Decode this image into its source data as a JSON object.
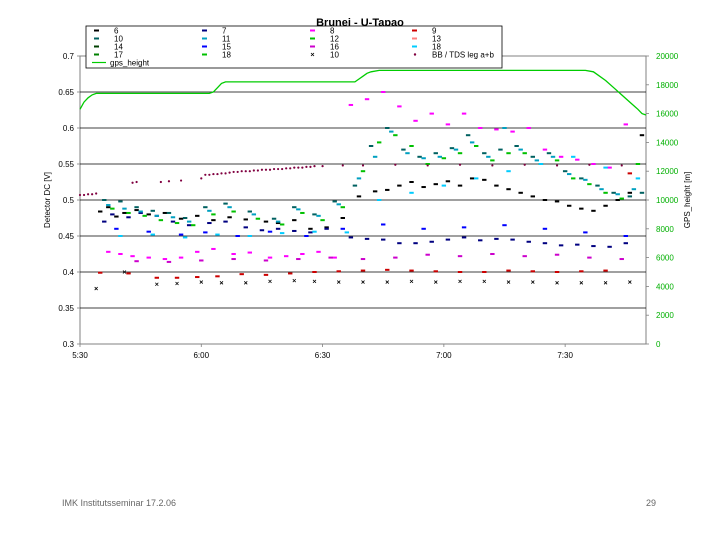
{
  "chart_data": {
    "type": "scatter",
    "title": "Brunei - U-Tapao",
    "ylabel": "Detector DC [V]",
    "y2label": "GPS_height [m]",
    "x_ticks": [
      "5:30",
      "6:00",
      "6:30",
      "7:00",
      "7:30"
    ],
    "x_range_minutes": [
      330,
      470
    ],
    "ylim": [
      0.3,
      0.7
    ],
    "y_ticks": [
      "0.3",
      "0.35",
      "0.4",
      "0.45",
      "0.5",
      "0.55",
      "0.6",
      "0.65",
      "0.7"
    ],
    "y2lim": [
      0,
      20000
    ],
    "y2_ticks": [
      "0",
      "2000",
      "4000",
      "6000",
      "8000",
      "10000",
      "12000",
      "14000",
      "16000",
      "18000",
      "20000"
    ],
    "grid": "horizontal",
    "legend_position": "top",
    "legend": [
      {
        "label": "6",
        "color": "#000000",
        "marker": "dash"
      },
      {
        "label": "7",
        "color": "#000080",
        "marker": "dash"
      },
      {
        "label": "8",
        "color": "#ff00ff",
        "marker": "dash"
      },
      {
        "label": "9",
        "color": "#cc0000",
        "marker": "dash"
      },
      {
        "label": "10",
        "color": "#006060",
        "marker": "dash"
      },
      {
        "label": "11",
        "color": "#00a0c0",
        "marker": "dash"
      },
      {
        "label": "12",
        "color": "#00c000",
        "marker": "dash"
      },
      {
        "label": "13",
        "color": "#ff8080",
        "marker": "dash"
      },
      {
        "label": "14",
        "color": "#004000",
        "marker": "dash"
      },
      {
        "label": "15",
        "color": "#0000ff",
        "marker": "dash"
      },
      {
        "label": "16",
        "color": "#cc00cc",
        "marker": "dash"
      },
      {
        "label": "18",
        "color": "#00ccff",
        "marker": "dash"
      },
      {
        "label": "17",
        "color": "#008000",
        "marker": "dash"
      },
      {
        "label": "18",
        "color": "#00c000",
        "marker": "dash"
      },
      {
        "label": "10",
        "color": "#000000",
        "marker": "x"
      },
      {
        "label": "BB / TDS leg a+b",
        "color": "#800040",
        "marker": "dot"
      },
      {
        "label": "gps_height",
        "color": "#00cc00",
        "marker": "line"
      }
    ],
    "gps_height": {
      "name": "gps_height",
      "color": "#00cc00",
      "x": [
        330,
        331,
        332,
        333,
        334,
        336,
        340,
        345,
        350,
        355,
        360,
        362,
        363,
        364,
        365,
        366,
        367,
        368,
        370,
        375,
        380,
        385,
        390,
        395,
        398,
        399,
        400,
        401,
        402,
        404,
        406,
        410,
        415,
        420,
        425,
        430,
        435,
        440,
        445,
        450,
        455,
        457,
        458,
        460,
        462,
        464,
        466,
        468,
        469,
        470
      ],
      "values": [
        16300,
        16800,
        17100,
        17300,
        17400,
        17400,
        17400,
        17400,
        17400,
        17400,
        17400,
        17400,
        17500,
        17800,
        18100,
        18200,
        18200,
        18200,
        18200,
        18200,
        18200,
        18200,
        18200,
        18200,
        18200,
        18400,
        18600,
        18800,
        18900,
        19000,
        19000,
        19000,
        19000,
        19000,
        19000,
        19000,
        19000,
        19000,
        19000,
        19000,
        19000,
        18900,
        18700,
        18300,
        17800,
        17300,
        16800,
        16300,
        16000,
        15900
      ]
    },
    "series": [
      {
        "name": "6",
        "color": "#000000",
        "x": [
          335,
          337,
          339,
          341,
          344,
          347,
          351,
          355,
          359,
          363,
          367,
          371,
          376,
          379,
          383,
          387,
          391,
          395,
          399,
          403,
          406,
          409,
          412,
          415,
          418,
          421,
          424,
          427,
          430,
          433,
          436,
          439,
          442,
          445,
          448,
          451,
          454,
          457,
          460,
          463,
          466,
          469
        ],
        "values": [
          0.484,
          0.49,
          0.477,
          0.482,
          0.486,
          0.48,
          0.482,
          0.474,
          0.478,
          0.472,
          0.476,
          0.473,
          0.47,
          0.468,
          0.472,
          0.46,
          0.462,
          0.475,
          0.505,
          0.512,
          0.514,
          0.52,
          0.525,
          0.518,
          0.522,
          0.526,
          0.52,
          0.53,
          0.528,
          0.52,
          0.515,
          0.51,
          0.505,
          0.5,
          0.498,
          0.492,
          0.488,
          0.485,
          0.492,
          0.5,
          0.51,
          0.59
        ]
      },
      {
        "name": "7",
        "color": "#000080",
        "x": [
          336,
          338,
          342,
          345,
          349,
          353,
          357,
          362,
          366,
          371,
          375,
          379,
          383,
          387,
          391,
          397,
          401,
          405,
          409,
          413,
          417,
          421,
          425,
          429,
          433,
          437,
          441,
          445,
          449,
          453,
          457,
          461,
          465
        ],
        "values": [
          0.47,
          0.48,
          0.476,
          0.482,
          0.478,
          0.47,
          0.465,
          0.468,
          0.47,
          0.462,
          0.458,
          0.46,
          0.457,
          0.455,
          0.46,
          0.448,
          0.446,
          0.445,
          0.44,
          0.44,
          0.442,
          0.445,
          0.448,
          0.444,
          0.446,
          0.445,
          0.442,
          0.44,
          0.437,
          0.438,
          0.436,
          0.435,
          0.44
        ]
      },
      {
        "name": "8",
        "color": "#ff00ff",
        "x": [
          337,
          340,
          343,
          347,
          351,
          355,
          359,
          363,
          368,
          372,
          377,
          381,
          385,
          389,
          393,
          397,
          401,
          405,
          409,
          413,
          417,
          421,
          425,
          429,
          433,
          437,
          441,
          445,
          449,
          453,
          457,
          461,
          465
        ],
        "values": [
          0.428,
          0.425,
          0.422,
          0.42,
          0.418,
          0.42,
          0.428,
          0.432,
          0.425,
          0.427,
          0.42,
          0.422,
          0.425,
          0.428,
          0.42,
          0.632,
          0.64,
          0.65,
          0.63,
          0.61,
          0.62,
          0.605,
          0.62,
          0.6,
          0.598,
          0.595,
          0.6,
          0.57,
          0.56,
          0.556,
          0.55,
          0.545,
          0.605
        ]
      },
      {
        "name": "9",
        "color": "#cc0000",
        "x": [
          335,
          342,
          349,
          354,
          359,
          364,
          370,
          376,
          382,
          388,
          394,
          400,
          406,
          412,
          418,
          424,
          430,
          436,
          442,
          448,
          454,
          460,
          466
        ],
        "values": [
          0.399,
          0.398,
          0.392,
          0.392,
          0.393,
          0.394,
          0.397,
          0.396,
          0.398,
          0.4,
          0.401,
          0.402,
          0.403,
          0.402,
          0.401,
          0.4,
          0.4,
          0.402,
          0.401,
          0.4,
          0.401,
          0.402,
          0.537
        ]
      },
      {
        "name": "10",
        "color": "#006060",
        "x": [
          336,
          340,
          344,
          348,
          352,
          356,
          361,
          366,
          372,
          378,
          383,
          388,
          393,
          398,
          402,
          406,
          410,
          414,
          418,
          422,
          426,
          430,
          434,
          438,
          442,
          446,
          450,
          454,
          458,
          462,
          466,
          469
        ],
        "values": [
          0.5,
          0.498,
          0.49,
          0.485,
          0.482,
          0.475,
          0.49,
          0.495,
          0.484,
          0.474,
          0.49,
          0.48,
          0.498,
          0.52,
          0.575,
          0.6,
          0.57,
          0.56,
          0.565,
          0.572,
          0.59,
          0.565,
          0.57,
          0.575,
          0.56,
          0.565,
          0.54,
          0.53,
          0.52,
          0.51,
          0.505,
          0.51
        ]
      },
      {
        "name": "11",
        "color": "#00a0c0",
        "x": [
          337,
          341,
          345,
          349,
          353,
          357,
          362,
          367,
          373,
          379,
          384,
          389,
          394,
          399,
          403,
          407,
          411,
          415,
          419,
          423,
          427,
          431,
          435,
          439,
          443,
          447,
          451,
          455,
          459,
          463,
          467
        ],
        "values": [
          0.493,
          0.488,
          0.484,
          0.478,
          0.476,
          0.47,
          0.485,
          0.49,
          0.48,
          0.47,
          0.487,
          0.478,
          0.494,
          0.53,
          0.56,
          0.595,
          0.565,
          0.558,
          0.56,
          0.57,
          0.58,
          0.56,
          0.6,
          0.57,
          0.555,
          0.56,
          0.536,
          0.528,
          0.515,
          0.508,
          0.515
        ]
      },
      {
        "name": "12",
        "color": "#00c000",
        "x": [
          338,
          342,
          346,
          350,
          354,
          358,
          363,
          368,
          374,
          380,
          385,
          390,
          395,
          400,
          404,
          408,
          412,
          416,
          420,
          424,
          428,
          432,
          436,
          440,
          444,
          448,
          452,
          456,
          460,
          464,
          468
        ],
        "values": [
          0.488,
          0.482,
          0.478,
          0.472,
          0.468,
          0.465,
          0.48,
          0.484,
          0.474,
          0.466,
          0.482,
          0.472,
          0.49,
          0.54,
          0.58,
          0.59,
          0.575,
          0.55,
          0.558,
          0.565,
          0.575,
          0.555,
          0.565,
          0.565,
          0.55,
          0.555,
          0.53,
          0.522,
          0.51,
          0.502,
          0.55
        ]
      },
      {
        "name": "15",
        "color": "#0000ff",
        "x": [
          339,
          347,
          355,
          361,
          369,
          377,
          386,
          395,
          405,
          415,
          425,
          435,
          445,
          455,
          465
        ],
        "values": [
          0.46,
          0.456,
          0.452,
          0.455,
          0.45,
          0.456,
          0.45,
          0.46,
          0.466,
          0.46,
          0.462,
          0.465,
          0.46,
          0.455,
          0.45
        ]
      },
      {
        "name": "16",
        "color": "#cc00cc",
        "x": [
          344,
          352,
          360,
          368,
          376,
          384,
          392,
          400,
          408,
          416,
          424,
          432,
          440,
          448,
          456,
          464
        ],
        "values": [
          0.415,
          0.414,
          0.416,
          0.418,
          0.416,
          0.418,
          0.42,
          0.418,
          0.42,
          0.424,
          0.422,
          0.425,
          0.422,
          0.424,
          0.42,
          0.418
        ]
      },
      {
        "name": "18",
        "color": "#00ccff",
        "x": [
          340,
          348,
          356,
          364,
          372,
          380,
          388,
          396,
          404,
          412,
          420,
          428,
          436,
          444,
          452,
          460,
          468
        ],
        "values": [
          0.45,
          0.452,
          0.448,
          0.452,
          0.45,
          0.454,
          0.456,
          0.455,
          0.5,
          0.51,
          0.52,
          0.53,
          0.54,
          0.55,
          0.56,
          0.545,
          0.53
        ]
      },
      {
        "name": "10",
        "color": "#000000",
        "marker": "x",
        "x": [
          334,
          341,
          349,
          354,
          360,
          365,
          371,
          377,
          383,
          388,
          394,
          400,
          406,
          412,
          418,
          424,
          430,
          436,
          442,
          448,
          454,
          460,
          466
        ],
        "values": [
          0.377,
          0.4,
          0.383,
          0.384,
          0.386,
          0.385,
          0.385,
          0.387,
          0.388,
          0.387,
          0.386,
          0.386,
          0.386,
          0.387,
          0.386,
          0.387,
          0.387,
          0.386,
          0.386,
          0.385,
          0.385,
          0.385,
          0.386
        ]
      },
      {
        "name": "BB / TDS leg a+b",
        "color": "#800040",
        "marker": "dot",
        "x": [
          330,
          331,
          332,
          333,
          334,
          343,
          344,
          350,
          352,
          355,
          360,
          361,
          362,
          363,
          364,
          365,
          366,
          367,
          368,
          369,
          370,
          371,
          372,
          373,
          374,
          375,
          376,
          377,
          378,
          379,
          380,
          381,
          382,
          383,
          384,
          385,
          386,
          387,
          388,
          390,
          395,
          400,
          408,
          416,
          424,
          432,
          440,
          448,
          456,
          464
        ],
        "values": [
          0.507,
          0.507,
          0.508,
          0.508,
          0.509,
          0.524,
          0.525,
          0.525,
          0.526,
          0.527,
          0.53,
          0.535,
          0.535,
          0.536,
          0.536,
          0.537,
          0.537,
          0.538,
          0.539,
          0.539,
          0.54,
          0.54,
          0.54,
          0.541,
          0.541,
          0.542,
          0.542,
          0.542,
          0.543,
          0.543,
          0.543,
          0.544,
          0.544,
          0.545,
          0.545,
          0.545,
          0.546,
          0.546,
          0.547,
          0.547,
          0.548,
          0.548,
          0.549,
          0.548,
          0.549,
          0.548,
          0.549,
          0.548,
          0.549,
          0.548
        ]
      }
    ]
  },
  "footer": {
    "left": "IMK Institutsseminar  17.2.06",
    "right": "29"
  }
}
